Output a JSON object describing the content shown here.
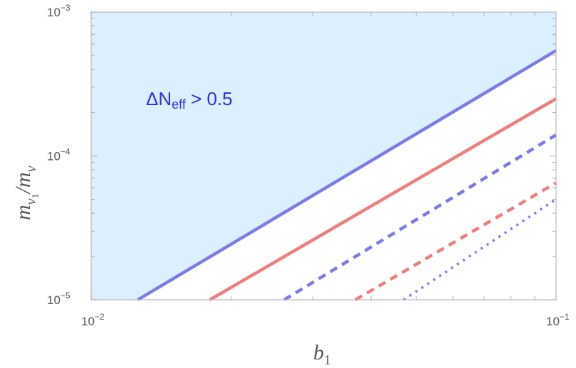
{
  "chart_data": {
    "type": "line",
    "xlabel": {
      "base": "b",
      "sub": "1"
    },
    "ylabel": {
      "base": "m",
      "sub_base": "ν",
      "sub_sub": "1",
      "denom_base": "m",
      "denom_sub": "ν"
    },
    "xscale": "log",
    "yscale": "log",
    "xlim": [
      0.01,
      0.1
    ],
    "ylim": [
      1e-05,
      0.001
    ],
    "xticks": [
      {
        "value": 0.01,
        "base": "10",
        "exp": "−2"
      },
      {
        "value": 0.1,
        "base": "10",
        "exp": "−1"
      }
    ],
    "yticks": [
      {
        "value": 1e-05,
        "base": "10",
        "exp": "−5"
      },
      {
        "value": 0.0001,
        "base": "10",
        "exp": "−4"
      },
      {
        "value": 0.001,
        "base": "10",
        "exp": "−3"
      }
    ],
    "grid": false,
    "shaded_region": {
      "label": {
        "prefix": "ΔN",
        "sub": "eff",
        "suffix": " > 0.5"
      },
      "label_color": "#2f2fe6",
      "color": "#dcefff",
      "boundary": {
        "x": [
          0.0126,
          0.1
        ],
        "y": [
          1e-05,
          0.00054
        ]
      }
    },
    "series": [
      {
        "style": "solid",
        "color": "#7b7bea",
        "x": [
          0.0126,
          0.1
        ],
        "y": [
          1e-05,
          0.00054
        ]
      },
      {
        "style": "solid",
        "color": "#f07e7e",
        "x": [
          0.018,
          0.1
        ],
        "y": [
          1e-05,
          0.00025
        ]
      },
      {
        "style": "dashed",
        "color": "#7b7bea",
        "x": [
          0.026,
          0.1
        ],
        "y": [
          1e-05,
          0.00014
        ]
      },
      {
        "style": "dashed",
        "color": "#f07e7e",
        "x": [
          0.037,
          0.1
        ],
        "y": [
          1e-05,
          6.5e-05
        ]
      },
      {
        "style": "dotted",
        "color": "#7b7bea",
        "x": [
          0.047,
          0.1
        ],
        "y": [
          1e-05,
          5e-05
        ]
      }
    ]
  }
}
